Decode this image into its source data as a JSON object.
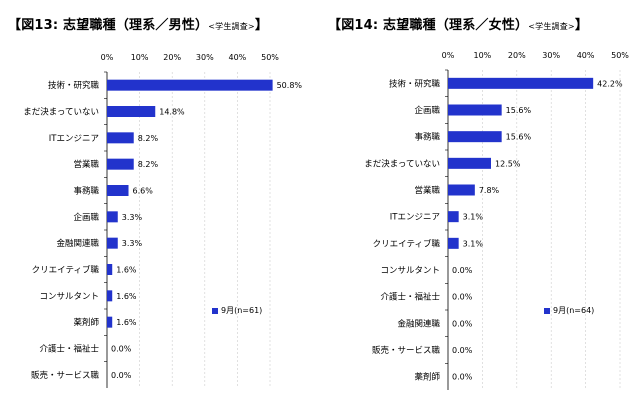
{
  "colors": {
    "bar": "#2233cc",
    "axis": "#000000",
    "grid": "#cccccc"
  },
  "chart_data": [
    {
      "type": "bar",
      "orientation": "horizontal",
      "title": "【図13:  志望職種（理系／男性）",
      "subtitle": "<学生調査>",
      "title_end": "】",
      "xlim": [
        0,
        50
      ],
      "xticks": [
        0,
        10,
        20,
        30,
        40,
        50
      ],
      "xtick_labels": [
        "0%",
        "10%",
        "20%",
        "30%",
        "40%",
        "50%"
      ],
      "categories": [
        "技術・研究職",
        "まだ決まっていない",
        "ITエンジニア",
        "営業職",
        "事務職",
        "企画職",
        "金融関連職",
        "クリエイティブ職",
        "コンサルタント",
        "薬剤師",
        "介護士・福祉士",
        "販売・サービス職"
      ],
      "series": [
        {
          "name": "9月(n=61)",
          "values": [
            50.8,
            14.8,
            8.2,
            8.2,
            6.6,
            3.3,
            3.3,
            1.6,
            1.6,
            1.6,
            0.0,
            0.0
          ],
          "labels": [
            "50.8%",
            "14.8%",
            "8.2%",
            "8.2%",
            "6.6%",
            "3.3%",
            "3.3%",
            "1.6%",
            "1.6%",
            "1.6%",
            "0.0%",
            "0.0%"
          ]
        }
      ],
      "legend_position": "lower-right",
      "grid": true
    },
    {
      "type": "bar",
      "orientation": "horizontal",
      "title": "【図14:  志望職種（理系／女性）",
      "subtitle": "<学生調査>",
      "title_end": "】",
      "xlim": [
        0,
        50
      ],
      "xticks": [
        0,
        10,
        20,
        30,
        40,
        50
      ],
      "xtick_labels": [
        "0%",
        "10%",
        "20%",
        "30%",
        "40%",
        "50%"
      ],
      "categories": [
        "技術・研究職",
        "企画職",
        "事務職",
        "まだ決まっていない",
        "営業職",
        "ITエンジニア",
        "クリエイティブ職",
        "コンサルタント",
        "介護士・福祉士",
        "金融関連職",
        "販売・サービス職",
        "薬剤師"
      ],
      "series": [
        {
          "name": "9月(n=64)",
          "values": [
            42.2,
            15.6,
            15.6,
            12.5,
            7.8,
            3.1,
            3.1,
            0.0,
            0.0,
            0.0,
            0.0,
            0.0
          ],
          "labels": [
            "42.2%",
            "15.6%",
            "15.6%",
            "12.5%",
            "7.8%",
            "3.1%",
            "3.1%",
            "0.0%",
            "0.0%",
            "0.0%",
            "0.0%",
            "0.0%"
          ]
        }
      ],
      "legend_position": "lower-right",
      "grid": true
    }
  ]
}
